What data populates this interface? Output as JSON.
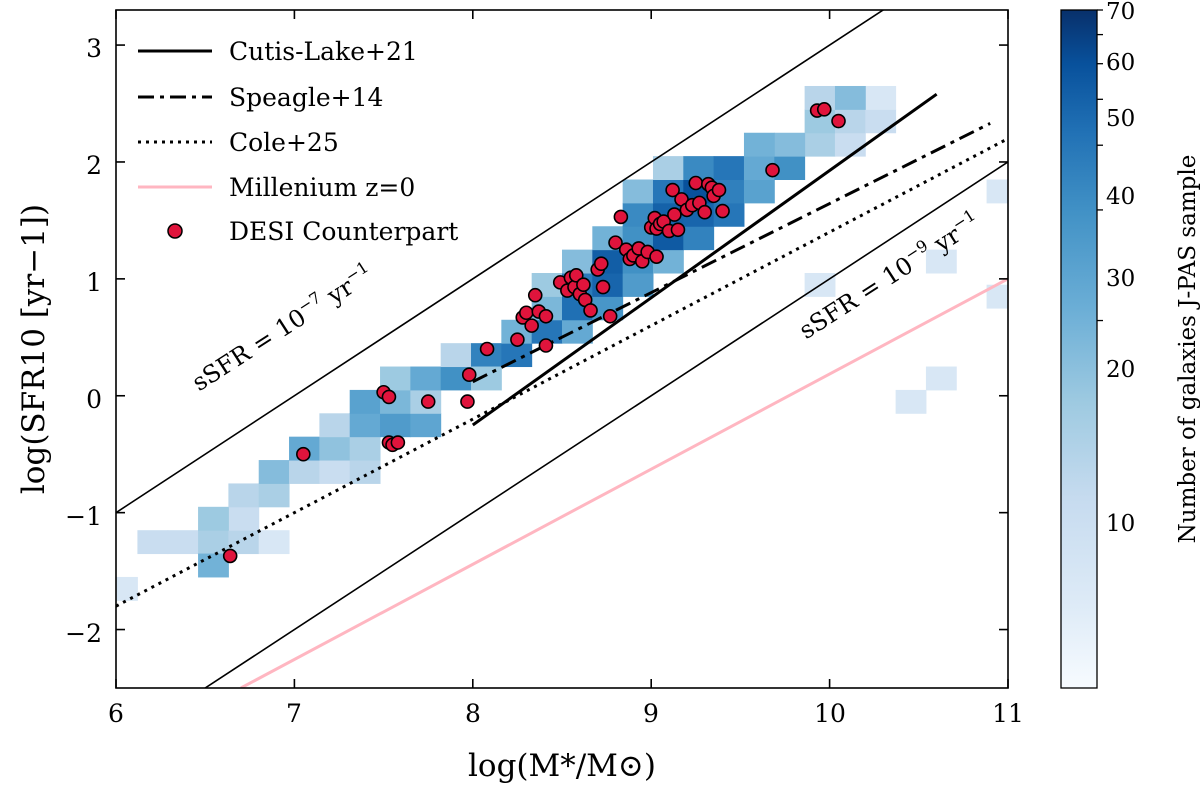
{
  "chart_data": {
    "type": "scatter",
    "xlabel": "log(M*/M⊙)",
    "ylabel": "log(SFR10 [yr−1])",
    "xlim": [
      6,
      11
    ],
    "ylim": [
      -2.5,
      3.3
    ],
    "xticks": [
      "6",
      "7",
      "8",
      "9",
      "10",
      "11"
    ],
    "yticks": [
      "−2",
      "−1",
      "0",
      "1",
      "2",
      "3"
    ],
    "colorbar": {
      "label": "Number of galaxies J-PAS sample",
      "range": [
        1,
        70
      ],
      "ticks": [
        "10",
        "20",
        "30",
        "40",
        "50",
        "60",
        "70"
      ],
      "color_low": "#f7fbff",
      "color_high": "#08306b"
    },
    "legend": {
      "position": "top-left",
      "entries": [
        {
          "label": "Cutis-Lake+21",
          "style": "solid"
        },
        {
          "label": "Speagle+14",
          "style": "dashdot"
        },
        {
          "label": "Cole+25",
          "style": "dotted"
        },
        {
          "label": "Millenium z=0",
          "style": "pink"
        },
        {
          "label": "DESI Counterpart",
          "style": "marker"
        }
      ]
    },
    "annotations": [
      {
        "text_main": "sSFR = 10",
        "text_exp": "−7",
        "text_unit": " yr",
        "text_unit_exp": "−1"
      },
      {
        "text_main": "sSFR = 10",
        "text_exp": "−9",
        "text_unit": " yr",
        "text_unit_exp": "−1"
      }
    ],
    "reference_lines": [
      {
        "name": "ssfr-1e-7",
        "intercept": -7,
        "color": "#000000"
      },
      {
        "name": "ssfr-1e-9",
        "intercept": -9,
        "color": "#000000"
      }
    ],
    "series": [
      {
        "name": "Cutis-Lake+21",
        "style": "solid",
        "color": "#000000",
        "x": [
          8.0,
          10.6
        ],
        "y": [
          -0.25,
          2.58
        ]
      },
      {
        "name": "Speagle+14",
        "style": "dashdot",
        "color": "#000000",
        "x": [
          8.0,
          10.9
        ],
        "y": [
          0.12,
          2.33
        ]
      },
      {
        "name": "Cole+25",
        "style": "dotted",
        "color": "#000000",
        "x": [
          6.0,
          11.0
        ],
        "y": [
          -1.8,
          2.2
        ]
      },
      {
        "name": "Millenium z=0",
        "style": "solid",
        "color": "#ffb6c1",
        "x": [
          6.7,
          11.0
        ],
        "y": [
          -2.5,
          1.0
        ]
      }
    ],
    "histogram": {
      "bin_width": 0.17,
      "bin_height": 0.2,
      "cells": [
        [
          5.95,
          -1.75,
          2
        ],
        [
          6.12,
          -1.35,
          3
        ],
        [
          6.29,
          -1.35,
          3
        ],
        [
          6.46,
          -1.35,
          5
        ],
        [
          6.63,
          -1.35,
          4
        ],
        [
          6.8,
          -1.35,
          2
        ],
        [
          6.46,
          -1.55,
          10
        ],
        [
          6.63,
          -1.15,
          3
        ],
        [
          6.46,
          -1.15,
          6
        ],
        [
          6.63,
          -0.95,
          4
        ],
        [
          6.8,
          -0.95,
          5
        ],
        [
          6.8,
          -0.75,
          8
        ],
        [
          6.97,
          -0.75,
          4
        ],
        [
          7.14,
          -0.75,
          3
        ],
        [
          7.31,
          -0.75,
          4
        ],
        [
          6.97,
          -0.55,
          12
        ],
        [
          7.14,
          -0.55,
          7
        ],
        [
          7.31,
          -0.55,
          5
        ],
        [
          7.14,
          -0.35,
          4
        ],
        [
          7.31,
          -0.35,
          12
        ],
        [
          7.48,
          -0.35,
          16
        ],
        [
          7.65,
          -0.35,
          13
        ],
        [
          7.31,
          -0.15,
          14
        ],
        [
          7.48,
          -0.15,
          9
        ],
        [
          7.65,
          -0.15,
          5
        ],
        [
          7.48,
          0.05,
          6
        ],
        [
          7.65,
          0.05,
          12
        ],
        [
          7.82,
          0.05,
          20
        ],
        [
          7.82,
          0.25,
          4
        ],
        [
          7.99,
          0.25,
          25
        ],
        [
          8.16,
          0.25,
          30
        ],
        [
          7.99,
          0.05,
          6
        ],
        [
          8.16,
          0.45,
          10
        ],
        [
          8.33,
          0.45,
          30
        ],
        [
          8.5,
          0.45,
          12
        ],
        [
          8.33,
          0.65,
          9
        ],
        [
          8.5,
          0.65,
          33
        ],
        [
          8.67,
          0.65,
          18
        ],
        [
          8.33,
          0.85,
          6
        ],
        [
          8.5,
          0.85,
          28
        ],
        [
          8.67,
          0.85,
          38
        ],
        [
          8.84,
          0.85,
          16
        ],
        [
          8.5,
          1.05,
          8
        ],
        [
          8.67,
          1.05,
          42
        ],
        [
          8.84,
          1.05,
          20
        ],
        [
          9.01,
          1.05,
          10
        ],
        [
          8.67,
          1.25,
          10
        ],
        [
          8.84,
          1.25,
          20
        ],
        [
          9.01,
          1.25,
          44
        ],
        [
          9.18,
          1.25,
          25
        ],
        [
          8.84,
          1.45,
          22
        ],
        [
          9.01,
          1.45,
          40
        ],
        [
          9.18,
          1.45,
          38
        ],
        [
          9.35,
          1.45,
          30
        ],
        [
          8.84,
          1.65,
          8
        ],
        [
          9.01,
          1.65,
          30
        ],
        [
          9.18,
          1.65,
          50
        ],
        [
          9.35,
          1.65,
          26
        ],
        [
          9.52,
          1.65,
          14
        ],
        [
          9.01,
          1.85,
          5
        ],
        [
          9.18,
          1.85,
          22
        ],
        [
          9.35,
          1.85,
          30
        ],
        [
          9.52,
          1.85,
          12
        ],
        [
          9.69,
          1.85,
          20
        ],
        [
          9.86,
          2.05,
          5
        ],
        [
          9.69,
          2.05,
          8
        ],
        [
          9.52,
          2.05,
          10
        ],
        [
          10.03,
          2.05,
          3
        ],
        [
          9.86,
          2.25,
          6
        ],
        [
          10.03,
          2.25,
          4
        ],
        [
          10.2,
          2.25,
          3
        ],
        [
          10.2,
          2.45,
          2
        ],
        [
          9.86,
          2.45,
          4
        ],
        [
          10.03,
          2.45,
          8
        ],
        [
          10.54,
          0.05,
          2
        ],
        [
          10.37,
          -0.15,
          2
        ],
        [
          9.86,
          0.85,
          2
        ],
        [
          10.54,
          1.05,
          2
        ],
        [
          10.88,
          0.75,
          2
        ],
        [
          10.88,
          1.65,
          2
        ]
      ]
    },
    "points": {
      "name": "DESI Counterpart",
      "color": "#e0143c",
      "edge": "#000000",
      "x": [
        6.64,
        7.05,
        7.5,
        7.53,
        7.53,
        7.55,
        7.58,
        7.75,
        7.97,
        7.98,
        8.08,
        8.25,
        8.28,
        8.3,
        8.33,
        8.35,
        8.37,
        8.41,
        8.41,
        8.49,
        8.53,
        8.55,
        8.57,
        8.58,
        8.6,
        8.62,
        8.63,
        8.66,
        8.7,
        8.72,
        8.73,
        8.77,
        8.8,
        8.83,
        8.86,
        8.88,
        8.9,
        8.93,
        8.95,
        8.98,
        9.0,
        9.02,
        9.03,
        9.03,
        9.05,
        9.07,
        9.1,
        9.12,
        9.13,
        9.15,
        9.17,
        9.2,
        9.23,
        9.25,
        9.27,
        9.3,
        9.32,
        9.34,
        9.35,
        9.38,
        9.4,
        9.68,
        9.93,
        9.97,
        10.05
      ],
      "y": [
        -1.37,
        -0.5,
        0.03,
        -0.4,
        -0.01,
        -0.42,
        -0.4,
        -0.05,
        -0.05,
        0.18,
        0.4,
        0.48,
        0.67,
        0.71,
        0.6,
        0.86,
        0.72,
        0.43,
        0.68,
        0.97,
        0.9,
        1.01,
        0.93,
        1.03,
        0.87,
        0.95,
        0.82,
        0.73,
        1.08,
        1.13,
        0.93,
        0.68,
        1.31,
        1.53,
        1.25,
        1.17,
        1.2,
        1.26,
        1.15,
        1.23,
        1.44,
        1.52,
        1.19,
        1.43,
        1.47,
        1.49,
        1.41,
        1.76,
        1.55,
        1.42,
        1.68,
        1.59,
        1.63,
        1.82,
        1.65,
        1.57,
        1.81,
        1.78,
        1.71,
        1.76,
        1.58,
        1.93,
        2.44,
        2.45,
        2.35
      ]
    }
  }
}
